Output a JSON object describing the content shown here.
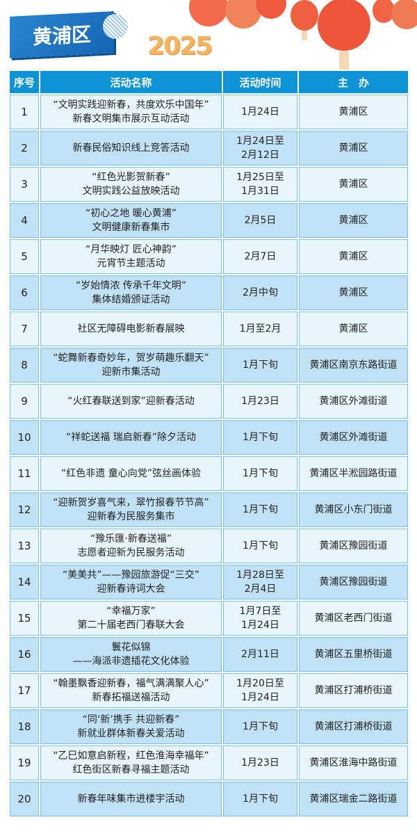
{
  "header": {
    "title": "黄浦区",
    "year": "2025"
  },
  "table": {
    "columns": [
      "序号",
      "活动名称",
      "活动时间",
      "主　办"
    ],
    "rows": [
      {
        "no": "1",
        "name": [
          "“文明实践迎新春，共度欢乐中国年”",
          "新春文明集市展示互动活动"
        ],
        "time": [
          "1月24日"
        ],
        "host": "黄浦区"
      },
      {
        "no": "2",
        "name": [
          "新春民俗知识线上竞答活动"
        ],
        "time": [
          "1月24日至",
          "2月12日"
        ],
        "host": "黄浦区"
      },
      {
        "no": "3",
        "name": [
          "“红色光影贺新春”",
          "文明实践公益放映活动"
        ],
        "time": [
          "1月25日至",
          "1月31日"
        ],
        "host": "黄浦区"
      },
      {
        "no": "4",
        "name": [
          "“初心之地 暖心黄浦”",
          "文明健康新春集市"
        ],
        "time": [
          "2月5日"
        ],
        "host": "黄浦区"
      },
      {
        "no": "5",
        "name": [
          "“月华映灯 匠心神韵”",
          "元宵节主题活动"
        ],
        "time": [
          "2月7日"
        ],
        "host": "黄浦区"
      },
      {
        "no": "6",
        "name": [
          "“岁始情浓 传承千年文明”",
          "集体结婚颁证活动"
        ],
        "time": [
          "2月中旬"
        ],
        "host": "黄浦区"
      },
      {
        "no": "7",
        "name": [
          "社区无障碍电影新春展映"
        ],
        "time": [
          "1月至2月"
        ],
        "host": "黄浦区"
      },
      {
        "no": "8",
        "name": [
          "“蛇舞新春奇妙年，贺岁萌趣乐翻天”",
          "迎新市集活动"
        ],
        "time": [
          "1月下旬"
        ],
        "host": "黄浦区南京东路街道"
      },
      {
        "no": "9",
        "name": [
          "“火红春联送到家”迎新春活动"
        ],
        "time": [
          "1月23日"
        ],
        "host": "黄浦区外滩街道"
      },
      {
        "no": "10",
        "name": [
          "“祥蛇送福 瑞启新春”除夕活动"
        ],
        "time": [
          "1月下旬"
        ],
        "host": "黄浦区外滩街道"
      },
      {
        "no": "11",
        "name": [
          "“红色非遗 童心向党”弦丝画体验"
        ],
        "time": [
          "1月下旬"
        ],
        "host": "黄浦区半淞园路街道"
      },
      {
        "no": "12",
        "name": [
          "“迎新贺岁喜气来，翠竹报春节节高”",
          "迎新春为民服务集市"
        ],
        "time": [
          "1月下旬"
        ],
        "host": "黄浦区小东门街道"
      },
      {
        "no": "13",
        "name": [
          "“豫乐匯·新春送福”",
          "志愿者迎新为民服务活动"
        ],
        "time": [
          "1月下旬"
        ],
        "host": "黄浦区豫园街道"
      },
      {
        "no": "14",
        "name": [
          "“美美共”——豫园旅游促“三交”",
          "迎新春诗词大会"
        ],
        "time": [
          "1月28日至",
          "2月4日"
        ],
        "host": "黄浦区豫园街道"
      },
      {
        "no": "15",
        "name": [
          "“幸福万家”",
          "第二十届老西门春联大会"
        ],
        "time": [
          "1月7日至",
          "1月24日"
        ],
        "host": "黄浦区老西门街道"
      },
      {
        "no": "16",
        "name": [
          "鬟花似锦",
          "——海派非遗插花文化体验"
        ],
        "time": [
          "2月11日"
        ],
        "host": "黄浦区五里桥街道"
      },
      {
        "no": "17",
        "name": [
          "“翰墨飘香迎新春，福气满满聚人心”",
          "新春拓福送福活动"
        ],
        "time": [
          "1月20日至",
          "1月24日"
        ],
        "host": "黄浦区打浦桥街道"
      },
      {
        "no": "18",
        "name": [
          "“同‘新’携手  共迎新春”",
          "新就业群体新春关爱活动"
        ],
        "time": [
          "1月下旬"
        ],
        "host": "黄浦区打浦桥街道"
      },
      {
        "no": "19",
        "name": [
          "“乙巳如意启新程，红色淮海幸福年”",
          "红色街区新春寻福主题活动"
        ],
        "time": [
          "1月23日"
        ],
        "host": "黄浦区淮海中路街道"
      },
      {
        "no": "20",
        "name": [
          "新春年味集市进楼宇活动"
        ],
        "time": [
          "1月下旬"
        ],
        "host": "黄浦区瑞金二路街道"
      }
    ]
  },
  "colors": {
    "header_bg": "#0e94d6",
    "row_light": "#e8f5fd",
    "row_dark": "#c0e1f6",
    "banner": "#1f78c4"
  }
}
